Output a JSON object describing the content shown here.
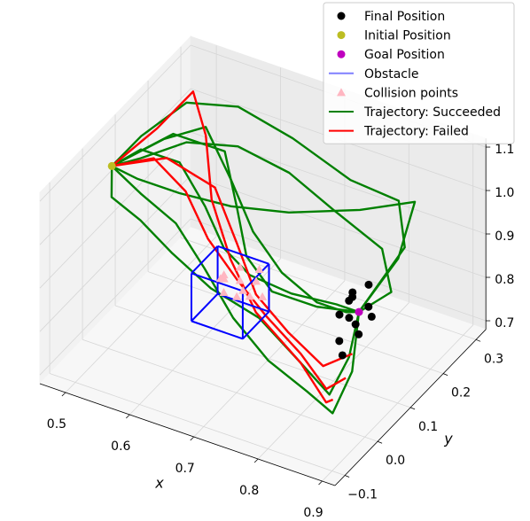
{
  "chart_data": {
    "type": "scatter3d",
    "xlabel": "x",
    "ylabel": "y",
    "xlim": [
      0.46,
      0.92
    ],
    "ylim": [
      -0.13,
      0.33
    ],
    "zlim": [
      0.68,
      1.12
    ],
    "xticks": [
      0.5,
      0.6,
      0.7,
      0.8,
      0.9
    ],
    "yticks": [
      {
        "value": -0.1,
        "label": "−0.1"
      },
      {
        "value": 0,
        "label": "0.0"
      },
      0.1,
      0.2,
      0.3
    ],
    "zticks": [
      0.7,
      0.8,
      0.9,
      {
        "value": 1,
        "label": "1.0"
      },
      1.1
    ],
    "grid": true,
    "legend": "upper right",
    "series": [
      {
        "name": "Final Position",
        "color": "#000000",
        "marker": "circle",
        "x": [
          0.84,
          0.85,
          0.86,
          0.87,
          0.85,
          0.86,
          0.84,
          0.87,
          0.86,
          0.85,
          0.88,
          0.86
        ],
        "y": [
          0.04,
          0.06,
          0.05,
          0.07,
          0.02,
          0.03,
          0.08,
          0.04,
          0.09,
          0.05,
          0.06,
          0.01
        ],
        "z": [
          0.9,
          0.93,
          0.88,
          0.91,
          0.86,
          0.95,
          0.92,
          0.87,
          0.94,
          0.89,
          0.9,
          0.84
        ]
      },
      {
        "name": "Initial Position",
        "color": "#bcbd22",
        "marker": "circle",
        "x": [
          0.47
        ],
        "y": [
          0.07
        ],
        "z": [
          1.03
        ]
      },
      {
        "name": "Goal Position",
        "color": "#bf00bf",
        "marker": "circle",
        "x": [
          0.85
        ],
        "y": [
          0.08
        ],
        "z": [
          0.88
        ]
      },
      {
        "name": "Obstacle",
        "color": "#0000ff",
        "marker": "box",
        "box": {
          "x": [
            0.64,
            0.72
          ],
          "y": [
            -0.02,
            0.06
          ],
          "z": [
            0.83,
            0.94
          ]
        }
      },
      {
        "name": "Collision points",
        "color": "#ffb6c1",
        "marker": "triangle",
        "x": [
          0.66,
          0.68,
          0.7,
          0.67,
          0.69,
          0.71,
          0.65,
          0.68,
          0.7,
          0.72,
          0.67,
          0.69
        ],
        "y": [
          0.04,
          0.05,
          0.06,
          0.02,
          0.03,
          0.05,
          0.06,
          0.04,
          0.02,
          0.04,
          0.01,
          0.06
        ],
        "z": [
          0.9,
          0.92,
          0.89,
          0.88,
          0.91,
          0.93,
          0.87,
          0.86,
          0.9,
          0.88,
          0.92,
          0.85
        ]
      },
      {
        "name": "Trajectory: Succeeded",
        "color": "#008000",
        "marker": "line",
        "trajectories": [
          {
            "x": [
              0.47,
              0.5,
              0.55,
              0.6,
              0.65,
              0.7,
              0.76,
              0.82,
              0.85
            ],
            "y": [
              0.07,
              0.1,
              0.12,
              0.1,
              0.06,
              0.04,
              0.05,
              0.07,
              0.08
            ],
            "z": [
              1.03,
              1.06,
              1.04,
              0.98,
              0.94,
              0.92,
              0.9,
              0.89,
              0.88
            ]
          },
          {
            "x": [
              0.47,
              0.49,
              0.52,
              0.58,
              0.66,
              0.75,
              0.82,
              0.86,
              0.85
            ],
            "y": [
              0.07,
              0.12,
              0.2,
              0.24,
              0.25,
              0.25,
              0.26,
              0.2,
              0.08
            ],
            "z": [
              1.03,
              1.07,
              1.1,
              1.09,
              1.05,
              1.0,
              0.98,
              0.94,
              0.88
            ]
          },
          {
            "x": [
              0.47,
              0.52,
              0.58,
              0.64,
              0.7,
              0.76,
              0.82,
              0.86,
              0.87,
              0.85
            ],
            "y": [
              0.07,
              0.06,
              0.05,
              0.02,
              -0.01,
              -0.02,
              -0.02,
              -0.02,
              0.02,
              0.08
            ],
            "z": [
              1.03,
              1.0,
              0.97,
              0.92,
              0.86,
              0.8,
              0.76,
              0.73,
              0.8,
              0.88
            ]
          },
          {
            "x": [
              0.47,
              0.51,
              0.56,
              0.62,
              0.68,
              0.74,
              0.8,
              0.84,
              0.85
            ],
            "y": [
              0.07,
              0.15,
              0.18,
              0.14,
              0.09,
              0.06,
              0.05,
              0.06,
              0.08
            ],
            "z": [
              1.03,
              1.05,
              1.08,
              1.02,
              0.97,
              0.93,
              0.9,
              0.89,
              0.88
            ]
          },
          {
            "x": [
              0.47,
              0.5,
              0.56,
              0.63,
              0.7,
              0.78,
              0.84,
              0.86,
              0.85
            ],
            "y": [
              0.07,
              0.09,
              0.1,
              0.12,
              0.16,
              0.22,
              0.27,
              0.18,
              0.08
            ],
            "z": [
              1.03,
              1.0,
              0.99,
              0.98,
              0.97,
              0.97,
              0.98,
              0.93,
              0.88
            ]
          },
          {
            "x": [
              0.47,
              0.49,
              0.54,
              0.6,
              0.66,
              0.73,
              0.8,
              0.85,
              0.86,
              0.85
            ],
            "y": [
              0.07,
              0.03,
              0.02,
              0.0,
              0.0,
              0.01,
              0.0,
              -0.01,
              0.03,
              0.08
            ],
            "z": [
              1.03,
              1.0,
              0.98,
              0.95,
              0.9,
              0.86,
              0.8,
              0.76,
              0.82,
              0.88
            ]
          },
          {
            "x": [
              0.47,
              0.53,
              0.6,
              0.65,
              0.69,
              0.74,
              0.8,
              0.85
            ],
            "y": [
              0.07,
              0.14,
              0.16,
              0.1,
              0.05,
              0.03,
              0.05,
              0.08
            ],
            "z": [
              1.03,
              1.08,
              1.06,
              1.0,
              0.95,
              0.91,
              0.89,
              0.88
            ]
          },
          {
            "x": [
              0.47,
              0.5,
              0.54,
              0.6,
              0.68,
              0.76,
              0.84,
              0.88,
              0.85
            ],
            "y": [
              0.07,
              0.1,
              0.16,
              0.2,
              0.2,
              0.18,
              0.17,
              0.12,
              0.08
            ],
            "z": [
              1.03,
              1.04,
              1.05,
              1.04,
              1.02,
              0.99,
              0.95,
              0.91,
              0.88
            ]
          }
        ]
      },
      {
        "name": "Trajectory: Failed",
        "color": "#ff0000",
        "marker": "line",
        "trajectories": [
          {
            "x": [
              0.47,
              0.5,
              0.52,
              0.55,
              0.6,
              0.66,
              0.72,
              0.8,
              0.85,
              0.84
            ],
            "y": [
              0.07,
              0.15,
              0.22,
              0.2,
              0.12,
              0.06,
              0.02,
              0.0,
              -0.02,
              0.02
            ],
            "z": [
              1.03,
              1.07,
              1.11,
              1.04,
              0.98,
              0.92,
              0.86,
              0.8,
              0.75,
              0.72
            ]
          },
          {
            "x": [
              0.47,
              0.52,
              0.58,
              0.63,
              0.68,
              0.73,
              0.79,
              0.84,
              0.86
            ],
            "y": [
              0.07,
              0.1,
              0.08,
              0.05,
              0.04,
              0.03,
              0.02,
              0.0,
              0.02
            ],
            "z": [
              1.03,
              1.05,
              1.02,
              0.96,
              0.9,
              0.85,
              0.8,
              0.76,
              0.78
            ]
          },
          {
            "x": [
              0.47,
              0.53,
              0.6,
              0.66,
              0.71,
              0.77,
              0.83,
              0.86
            ],
            "y": [
              0.07,
              0.12,
              0.13,
              0.08,
              0.04,
              0.02,
              0.01,
              0.04
            ],
            "z": [
              1.03,
              1.04,
              1.0,
              0.94,
              0.88,
              0.84,
              0.8,
              0.82
            ]
          }
        ]
      }
    ]
  }
}
